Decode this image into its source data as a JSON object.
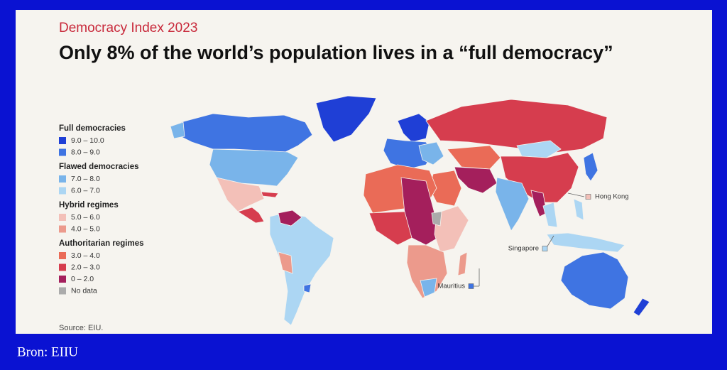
{
  "header": {
    "kicker": "Democracy Index 2023",
    "title": "Only 8% of the world’s population lives in a “full democracy”"
  },
  "legend": {
    "groups": [
      {
        "title": "Full democracies",
        "items": [
          {
            "label": "9.0 – 10.0",
            "color": "#1f3fd6"
          },
          {
            "label": "8.0 – 9.0",
            "color": "#3f74e2"
          }
        ]
      },
      {
        "title": "Flawed democracies",
        "items": [
          {
            "label": "7.0 – 8.0",
            "color": "#79b4ea"
          },
          {
            "label": "6.0 – 7.0",
            "color": "#acd6f3"
          }
        ]
      },
      {
        "title": "Hybrid regimes",
        "items": [
          {
            "label": "5.0 – 6.0",
            "color": "#f3c0b8"
          },
          {
            "label": "4.0 – 5.0",
            "color": "#ec9a8c"
          }
        ]
      },
      {
        "title": "Authoritarian regimes",
        "items": [
          {
            "label": "3.0 – 4.0",
            "color": "#ea6b57"
          },
          {
            "label": "2.0 – 3.0",
            "color": "#d63d4e"
          },
          {
            "label": "0 – 2.0",
            "color": "#a41f5c"
          }
        ]
      }
    ],
    "no_data": {
      "label": "No data",
      "color": "#ababab"
    }
  },
  "callouts": [
    {
      "label": "Hong Kong",
      "color": "#f3c0b8"
    },
    {
      "label": "Singapore",
      "color": "#acd6f3"
    },
    {
      "label": "Mauritius",
      "color": "#3f74e2"
    }
  ],
  "source": "Source: EIU.",
  "caption": "Bron: EIIU"
}
